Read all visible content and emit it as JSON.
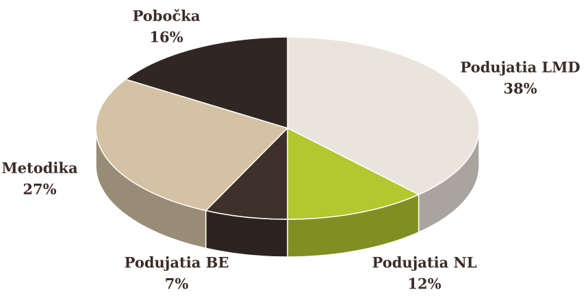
{
  "chart_data": {
    "type": "pie",
    "categories": [
      "Podujatia LMD",
      "Podujatia NL",
      "Podujatia BE",
      "Metodika",
      "Pobočka"
    ],
    "values": [
      38,
      12,
      7,
      27,
      16
    ],
    "value_labels": [
      "38%",
      "12%",
      "7%",
      "27%",
      "16%"
    ],
    "colors": [
      "#ebe4dc",
      "#b3c72f",
      "#3e312a",
      "#d5c2a4",
      "#302722"
    ]
  }
}
